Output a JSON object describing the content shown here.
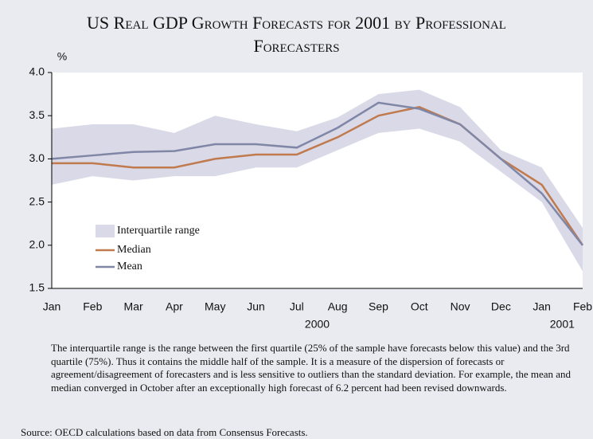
{
  "chart_data": {
    "type": "line",
    "title": "US Real GDP Growth Forecasts for 2001 by Professional Forecasters",
    "y_label": "%",
    "categories": [
      "Jan",
      "Feb",
      "Mar",
      "Apr",
      "May",
      "Jun",
      "Jul",
      "Aug",
      "Sep",
      "Oct",
      "Nov",
      "Dec",
      "Jan",
      "Feb"
    ],
    "x_group_labels": [
      "2000",
      "2001"
    ],
    "ylim": [
      1.5,
      4.0
    ],
    "yticks": [
      {
        "value": 1.5,
        "label": "1.5"
      },
      {
        "value": 2,
        "label": "2.0"
      },
      {
        "value": 2.5,
        "label": "2.5"
      },
      {
        "value": 3,
        "label": "3.0"
      },
      {
        "value": 3.5,
        "label": "3.5"
      },
      {
        "value": 4,
        "label": "4.0"
      }
    ],
    "band": {
      "name": "Interquartile range",
      "color": "#d9d9e7",
      "upper": [
        3.35,
        3.4,
        3.4,
        3.3,
        3.5,
        3.4,
        3.32,
        3.48,
        3.75,
        3.8,
        3.6,
        3.1,
        2.9,
        2.2
      ],
      "lower": [
        2.7,
        2.8,
        2.75,
        2.8,
        2.8,
        2.9,
        2.9,
        3.1,
        3.3,
        3.35,
        3.2,
        2.85,
        2.5,
        1.7
      ]
    },
    "series": [
      {
        "name": "Median",
        "color": "#c07a4e",
        "values": [
          2.95,
          2.95,
          2.9,
          2.9,
          3.0,
          3.05,
          3.05,
          3.25,
          3.5,
          3.6,
          3.4,
          3.0,
          2.7,
          2.0
        ]
      },
      {
        "name": "Mean",
        "color": "#8087a6",
        "values": [
          3.0,
          3.04,
          3.08,
          3.09,
          3.17,
          3.17,
          3.13,
          3.36,
          3.65,
          3.58,
          3.4,
          3.0,
          2.6,
          2.0
        ]
      }
    ],
    "note": "The interquartile range is the range between the first quartile (25% of the sample have forecasts below this value) and the 3rd quartile (75%). Thus it contains the middle half of the sample. It is a measure of the dispersion of forecasts or agreement/disagreement of forecasters and is less sensitive to outliers than the standard deviation. For example, the mean and median converged in October after an exceptionally high forecast of 6.2 percent had been revised downwards.",
    "source": "Source: OECD calculations based on data from Consensus Forecasts."
  }
}
